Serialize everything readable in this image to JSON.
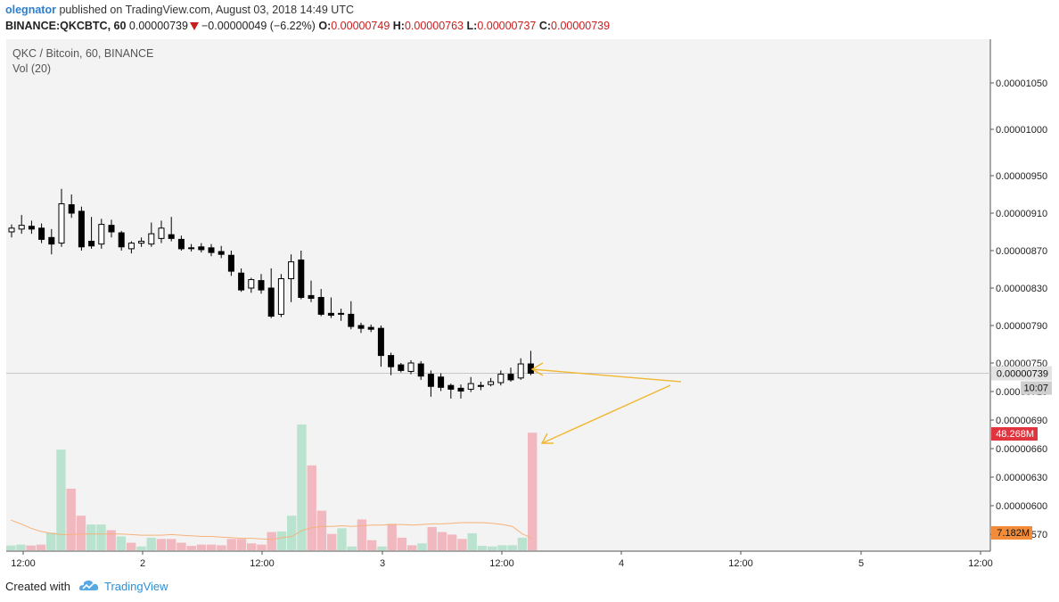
{
  "header": {
    "author": "olegnator",
    "published_text": "published on TradingView.com, August 03, 2018 14:49 UTC",
    "symbol": "BINANCE:QKCBTC, 60",
    "last": "0.00000739",
    "change": "−0.00000049 (−6.22%)",
    "o_label": "O:",
    "o": "0.00000749",
    "h_label": "H:",
    "h": "0.00000763",
    "l_label": "L:",
    "l": "0.00000737",
    "c_label": "C:",
    "c": "0.00000739"
  },
  "legend": {
    "series_name": "QKC / Bitcoin, 60, BINANCE",
    "volume_name": "Vol (20)"
  },
  "footer": {
    "created_with": "Created with",
    "brand": "TradingView"
  },
  "colors": {
    "up_candle": "#ffffff",
    "down_candle": "#000000",
    "vol_up": "#b9e3cf",
    "vol_down": "#f2b8bf",
    "ma_line": "#f5b27a",
    "annotation_arrow": "#f1b731",
    "price_badge": "#e0e0e0",
    "vol_badge": "#e0353f",
    "ma_badge": "#f28c3a",
    "chart_bg": "#f3f3f3"
  },
  "chart_data": {
    "type": "candlestick",
    "title": "QKC / Bitcoin, 60, BINANCE",
    "y_ticks": [
      "0.00001050",
      "0.00001000",
      "0.00000950",
      "0.00000910",
      "0.00000870",
      "0.00000830",
      "0.00000790",
      "0.00000750",
      "0.00000710",
      "0.00000690",
      "0.00000660",
      "0.00000630",
      "0.00000600",
      "0.00000570"
    ],
    "x_ticks": [
      "12:00",
      "2",
      "12:00",
      "3",
      "12:00",
      "4",
      "12:00",
      "5",
      "12:00"
    ],
    "last_price_label": "0.00000739",
    "countdown_label": "10:07",
    "last_volume_label": "48.268M",
    "volume_ma_label": "7.182M",
    "price_ylim": [
      6.8e-06,
      1.08e-05
    ],
    "candles": [
      {
        "o": 8.9e-06,
        "h": 8.98e-06,
        "l": 8.84e-06,
        "c": 8.94e-06
      },
      {
        "o": 8.93e-06,
        "h": 9.08e-06,
        "l": 8.88e-06,
        "c": 8.97e-06
      },
      {
        "o": 8.96e-06,
        "h": 9.02e-06,
        "l": 8.88e-06,
        "c": 8.93e-06
      },
      {
        "o": 8.94e-06,
        "h": 8.99e-06,
        "l": 8.78e-06,
        "c": 8.82e-06
      },
      {
        "o": 8.84e-06,
        "h": 8.93e-06,
        "l": 8.66e-06,
        "c": 8.77e-06
      },
      {
        "o": 8.78e-06,
        "h": 9.36e-06,
        "l": 8.74e-06,
        "c": 9.2e-06
      },
      {
        "o": 9.19e-06,
        "h": 9.3e-06,
        "l": 9.05e-06,
        "c": 9.1e-06
      },
      {
        "o": 9.12e-06,
        "h": 9.17e-06,
        "l": 8.7e-06,
        "c": 8.74e-06
      },
      {
        "o": 8.8e-06,
        "h": 9.06e-06,
        "l": 8.72e-06,
        "c": 8.75e-06
      },
      {
        "o": 8.77e-06,
        "h": 9.04e-06,
        "l": 8.72e-06,
        "c": 8.98e-06
      },
      {
        "o": 8.97e-06,
        "h": 9.03e-06,
        "l": 8.84e-06,
        "c": 8.9e-06
      },
      {
        "o": 8.89e-06,
        "h": 8.91e-06,
        "l": 8.7e-06,
        "c": 8.74e-06
      },
      {
        "o": 8.72e-06,
        "h": 8.8e-06,
        "l": 8.67e-06,
        "c": 8.78e-06
      },
      {
        "o": 8.78e-06,
        "h": 8.84e-06,
        "l": 8.74e-06,
        "c": 8.8e-06
      },
      {
        "o": 8.77e-06,
        "h": 9e-06,
        "l": 8.74e-06,
        "c": 8.88e-06
      },
      {
        "o": 8.83e-06,
        "h": 9.02e-06,
        "l": 8.78e-06,
        "c": 8.94e-06
      },
      {
        "o": 8.87e-06,
        "h": 9.06e-06,
        "l": 8.8e-06,
        "c": 8.83e-06
      },
      {
        "o": 8.82e-06,
        "h": 8.86e-06,
        "l": 8.7e-06,
        "c": 8.72e-06
      },
      {
        "o": 8.73e-06,
        "h": 8.77e-06,
        "l": 8.69e-06,
        "c": 8.73e-06
      },
      {
        "o": 8.74e-06,
        "h": 8.78e-06,
        "l": 8.68e-06,
        "c": 8.71e-06
      },
      {
        "o": 8.73e-06,
        "h": 8.77e-06,
        "l": 8.64e-06,
        "c": 8.68e-06
      },
      {
        "o": 8.69e-06,
        "h": 8.75e-06,
        "l": 8.62e-06,
        "c": 8.66e-06
      },
      {
        "o": 8.65e-06,
        "h": 8.7e-06,
        "l": 8.43e-06,
        "c": 8.48e-06
      },
      {
        "o": 8.46e-06,
        "h": 8.51e-06,
        "l": 8.26e-06,
        "c": 8.28e-06
      },
      {
        "o": 8.3e-06,
        "h": 8.41e-06,
        "l": 8.25e-06,
        "c": 8.39e-06
      },
      {
        "o": 8.38e-06,
        "h": 8.45e-06,
        "l": 8.24e-06,
        "c": 8.28e-06
      },
      {
        "o": 8.3e-06,
        "h": 8.51e-06,
        "l": 7.98e-06,
        "c": 8e-06
      },
      {
        "o": 8.02e-06,
        "h": 8.45e-06,
        "l": 7.99e-06,
        "c": 8.4e-06
      },
      {
        "o": 8.4e-06,
        "h": 8.66e-06,
        "l": 8.15e-06,
        "c": 8.58e-06
      },
      {
        "o": 8.6e-06,
        "h": 8.7e-06,
        "l": 8.18e-06,
        "c": 8.2e-06
      },
      {
        "o": 8.22e-06,
        "h": 8.38e-06,
        "l": 8.15e-06,
        "c": 8.19e-06
      },
      {
        "o": 8.2e-06,
        "h": 8.29e-06,
        "l": 8e-06,
        "c": 8.02e-06
      },
      {
        "o": 8.03e-06,
        "h": 8.2e-06,
        "l": 7.98e-06,
        "c": 8.01e-06
      },
      {
        "o": 8.03e-06,
        "h": 8.08e-06,
        "l": 7.95e-06,
        "c": 8.02e-06
      },
      {
        "o": 8.02e-06,
        "h": 8.16e-06,
        "l": 7.86e-06,
        "c": 7.89e-06
      },
      {
        "o": 7.9e-06,
        "h": 7.93e-06,
        "l": 7.82e-06,
        "c": 7.87e-06
      },
      {
        "o": 7.88e-06,
        "h": 7.91e-06,
        "l": 7.83e-06,
        "c": 7.86e-06
      },
      {
        "o": 7.87e-06,
        "h": 7.9e-06,
        "l": 7.46e-06,
        "c": 7.58e-06
      },
      {
        "o": 7.58e-06,
        "h": 7.61e-06,
        "l": 7.37e-06,
        "c": 7.46e-06
      },
      {
        "o": 7.48e-06,
        "h": 7.5e-06,
        "l": 7.4e-06,
        "c": 7.42e-06
      },
      {
        "o": 7.41e-06,
        "h": 7.53e-06,
        "l": 7.38e-06,
        "c": 7.5e-06
      },
      {
        "o": 7.49e-06,
        "h": 7.52e-06,
        "l": 7.32e-06,
        "c": 7.36e-06
      },
      {
        "o": 7.38e-06,
        "h": 7.42e-06,
        "l": 7.14e-06,
        "c": 7.25e-06
      },
      {
        "o": 7.35e-06,
        "h": 7.39e-06,
        "l": 7.2e-06,
        "c": 7.24e-06
      },
      {
        "o": 7.26e-06,
        "h": 7.28e-06,
        "l": 7.12e-06,
        "c": 7.22e-06
      },
      {
        "o": 7.23e-06,
        "h": 7.27e-06,
        "l": 7.12e-06,
        "c": 7.2e-06
      },
      {
        "o": 7.22e-06,
        "h": 7.35e-06,
        "l": 7.19e-06,
        "c": 7.28e-06
      },
      {
        "o": 7.26e-06,
        "h": 7.3e-06,
        "l": 7.21e-06,
        "c": 7.25e-06
      },
      {
        "o": 7.27e-06,
        "h": 7.34e-06,
        "l": 7.25e-06,
        "c": 7.3e-06
      },
      {
        "o": 7.29e-06,
        "h": 7.42e-06,
        "l": 7.26e-06,
        "c": 7.38e-06
      },
      {
        "o": 7.38e-06,
        "h": 7.45e-06,
        "l": 7.3e-06,
        "c": 7.32e-06
      },
      {
        "o": 7.34e-06,
        "h": 7.55e-06,
        "l": 7.32e-06,
        "c": 7.49e-06
      },
      {
        "o": 7.49e-06,
        "h": 7.63e-06,
        "l": 7.37e-06,
        "c": 7.39e-06
      }
    ],
    "volume_ylim": [
      0,
      10
    ],
    "volumes": [
      {
        "v": 0.38,
        "up": true
      },
      {
        "v": 0.45,
        "up": true
      },
      {
        "v": 0.38,
        "up": false
      },
      {
        "v": 0.45,
        "up": false
      },
      {
        "v": 1.4,
        "up": true
      },
      {
        "v": 8.0,
        "up": true
      },
      {
        "v": 4.9,
        "up": false
      },
      {
        "v": 2.75,
        "up": false
      },
      {
        "v": 2.05,
        "up": true
      },
      {
        "v": 2.05,
        "up": true
      },
      {
        "v": 1.6,
        "up": false
      },
      {
        "v": 1.1,
        "up": true
      },
      {
        "v": 0.6,
        "up": false
      },
      {
        "v": 0.3,
        "up": true
      },
      {
        "v": 1.0,
        "up": true
      },
      {
        "v": 0.9,
        "up": false
      },
      {
        "v": 0.9,
        "up": false
      },
      {
        "v": 0.6,
        "up": false
      },
      {
        "v": 0.35,
        "up": false
      },
      {
        "v": 0.45,
        "up": false
      },
      {
        "v": 0.45,
        "up": false
      },
      {
        "v": 0.4,
        "up": false
      },
      {
        "v": 0.9,
        "up": false
      },
      {
        "v": 0.9,
        "up": false
      },
      {
        "v": 0.55,
        "up": false
      },
      {
        "v": 0.45,
        "up": false
      },
      {
        "v": 1.45,
        "up": false
      },
      {
        "v": 1.5,
        "up": true
      },
      {
        "v": 2.75,
        "up": true
      },
      {
        "v": 10.0,
        "up": true
      },
      {
        "v": 6.75,
        "up": false
      },
      {
        "v": 3.15,
        "up": false
      },
      {
        "v": 1.3,
        "up": false
      },
      {
        "v": 1.75,
        "up": true
      },
      {
        "v": 0.3,
        "up": true
      },
      {
        "v": 2.45,
        "up": false
      },
      {
        "v": 0.8,
        "up": false
      },
      {
        "v": 0.3,
        "up": true
      },
      {
        "v": 2.1,
        "up": false
      },
      {
        "v": 1.0,
        "up": false
      },
      {
        "v": 0.4,
        "up": false
      },
      {
        "v": 0.55,
        "up": true
      },
      {
        "v": 1.85,
        "up": false
      },
      {
        "v": 1.45,
        "up": false
      },
      {
        "v": 1.25,
        "up": false
      },
      {
        "v": 0.9,
        "up": false
      },
      {
        "v": 1.35,
        "up": true
      },
      {
        "v": 0.35,
        "up": true
      },
      {
        "v": 0.3,
        "up": true
      },
      {
        "v": 0.4,
        "up": true
      },
      {
        "v": 0.4,
        "up": true
      },
      {
        "v": 1.0,
        "up": true
      },
      {
        "v": 9.35,
        "up": false
      }
    ],
    "volume_ma": [
      2.4,
      2.1,
      1.75,
      1.5,
      1.35,
      1.25,
      1.25,
      1.3,
      1.3,
      1.3,
      1.3,
      1.3,
      1.25,
      1.2,
      1.2,
      1.2,
      1.25,
      1.2,
      1.15,
      1.1,
      1.1,
      1.05,
      1.0,
      0.95,
      0.95,
      0.9,
      0.85,
      1.0,
      1.1,
      1.55,
      1.8,
      1.9,
      1.9,
      1.95,
      1.9,
      1.95,
      2.0,
      2.0,
      2.05,
      2.05,
      2.0,
      2.05,
      2.1,
      2.1,
      2.15,
      2.2,
      2.2,
      2.2,
      2.15,
      2.05,
      1.9,
      1.3,
      0.95
    ]
  }
}
